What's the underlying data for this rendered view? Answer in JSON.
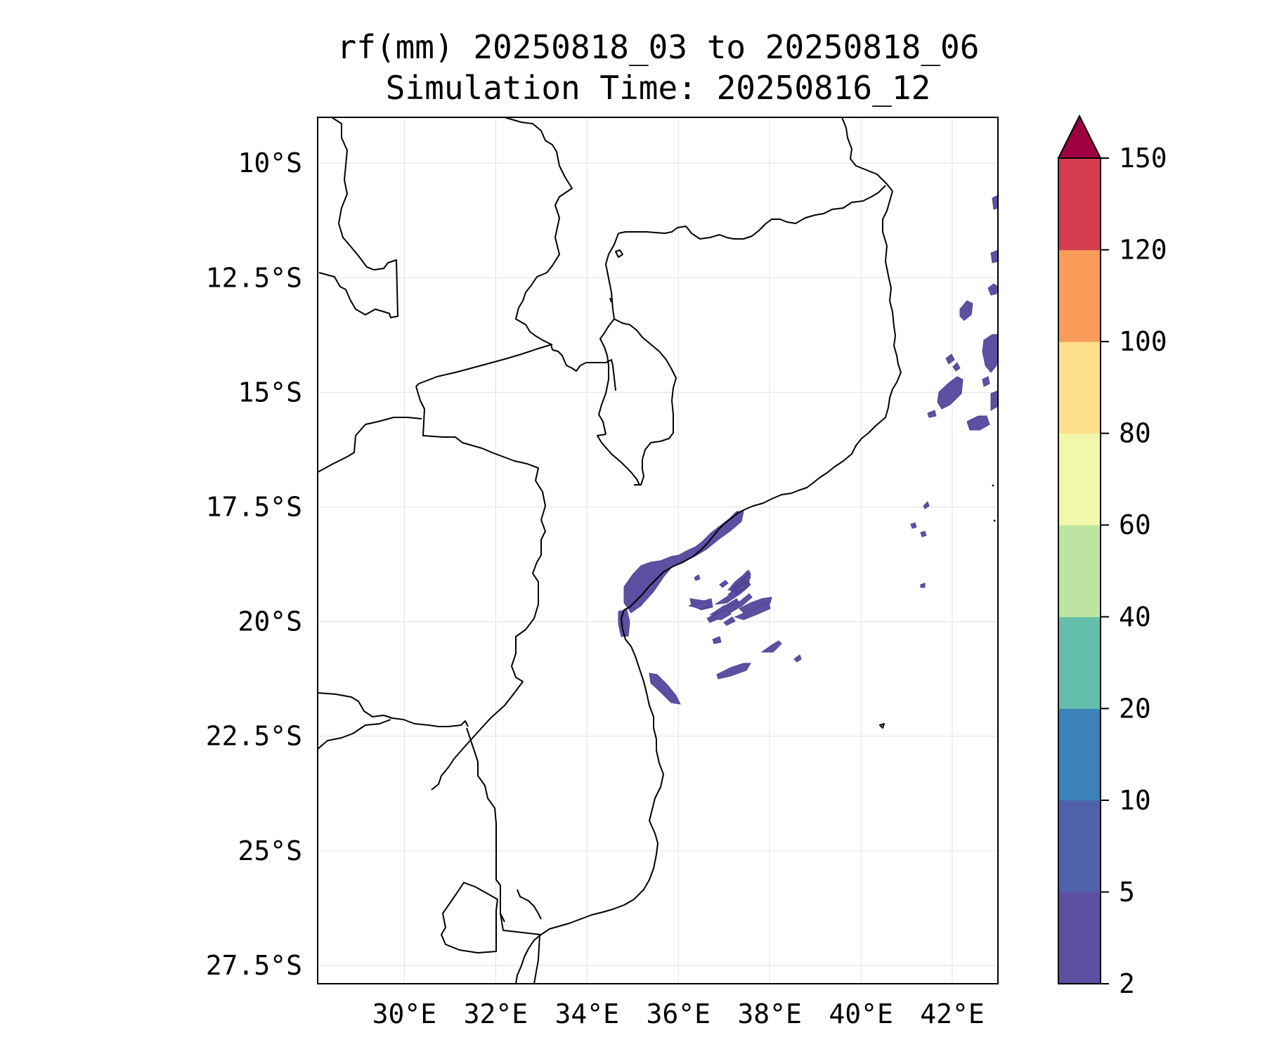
{
  "title": {
    "line1": "rf(mm) 20250818_03 to 20250818_06",
    "line2": "Simulation Time: 20250816_12"
  },
  "map": {
    "lon_range": [
      28.1,
      43.0
    ],
    "lat_range": [
      -9.0,
      -27.9
    ],
    "lat_ticks": [
      {
        "value": -10.0,
        "label": "10°S"
      },
      {
        "value": -12.5,
        "label": "12.5°S"
      },
      {
        "value": -15.0,
        "label": "15°S"
      },
      {
        "value": -17.5,
        "label": "17.5°S"
      },
      {
        "value": -20.0,
        "label": "20°S"
      },
      {
        "value": -22.5,
        "label": "22.5°S"
      },
      {
        "value": -25.0,
        "label": "25°S"
      },
      {
        "value": -27.5,
        "label": "27.5°S"
      }
    ],
    "lon_ticks": [
      {
        "value": 30,
        "label": "30°E"
      },
      {
        "value": 32,
        "label": "32°E"
      },
      {
        "value": 34,
        "label": "34°E"
      },
      {
        "value": 36,
        "label": "36°E"
      },
      {
        "value": 38,
        "label": "38°E"
      },
      {
        "value": 40,
        "label": "40°E"
      },
      {
        "value": 42,
        "label": "42°E"
      }
    ],
    "gridlines": true,
    "precip_fill_color": "#5e4fa2"
  },
  "colorbar": {
    "extend": "max",
    "extend_color": "#9e0142",
    "levels": [
      "2",
      "5",
      "10",
      "20",
      "40",
      "60",
      "80",
      "100",
      "120",
      "150"
    ],
    "colors": [
      "#5e4fa2",
      "#4f62ab",
      "#3a82b8",
      "#63bfab",
      "#bde4a0",
      "#f1f8ab",
      "#fddf8b",
      "#f99c5a",
      "#d53e4f"
    ]
  }
}
